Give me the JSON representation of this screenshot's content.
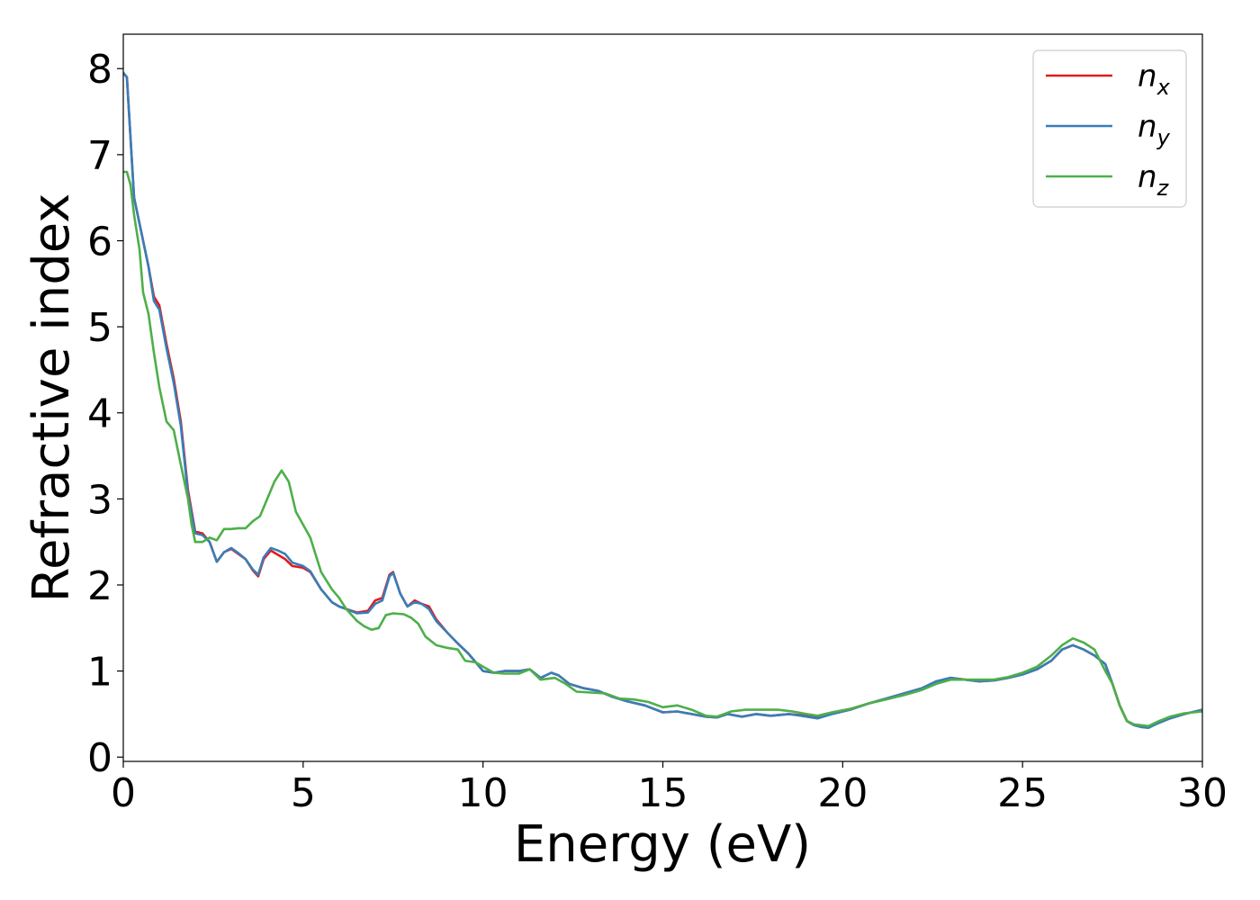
{
  "chart_data": {
    "type": "line",
    "title": "",
    "xlabel": "Energy (eV)",
    "ylabel": "Refractive index",
    "xlim": [
      0,
      30
    ],
    "ylim": [
      -0.05,
      8.4
    ],
    "xticks": [
      0,
      5,
      10,
      15,
      20,
      25,
      30
    ],
    "xtick_labels": [
      "0",
      "5",
      "10",
      "15",
      "20",
      "25",
      "30"
    ],
    "yticks": [
      0,
      1,
      2,
      3,
      4,
      5,
      6,
      7,
      8
    ],
    "ytick_labels": [
      "0",
      "1",
      "2",
      "3",
      "4",
      "5",
      "6",
      "7",
      "8"
    ],
    "grid": false,
    "legend_position": "top-right",
    "series": [
      {
        "name": "n_x",
        "label_main": "n",
        "label_sub": "x",
        "color": "#e41a1c",
        "points": [
          [
            0,
            7.95
          ],
          [
            0.1,
            7.9
          ],
          [
            0.2,
            7.2
          ],
          [
            0.3,
            6.5
          ],
          [
            0.5,
            6.1
          ],
          [
            0.7,
            5.7
          ],
          [
            0.85,
            5.35
          ],
          [
            1.0,
            5.25
          ],
          [
            1.2,
            4.8
          ],
          [
            1.4,
            4.4
          ],
          [
            1.6,
            3.9
          ],
          [
            1.8,
            3.1
          ],
          [
            2.0,
            2.62
          ],
          [
            2.2,
            2.6
          ],
          [
            2.4,
            2.5
          ],
          [
            2.6,
            2.27
          ],
          [
            2.8,
            2.38
          ],
          [
            3.0,
            2.42
          ],
          [
            3.2,
            2.36
          ],
          [
            3.4,
            2.3
          ],
          [
            3.6,
            2.17
          ],
          [
            3.75,
            2.1
          ],
          [
            3.9,
            2.3
          ],
          [
            4.1,
            2.4
          ],
          [
            4.3,
            2.35
          ],
          [
            4.5,
            2.3
          ],
          [
            4.7,
            2.22
          ],
          [
            5.0,
            2.2
          ],
          [
            5.2,
            2.15
          ],
          [
            5.5,
            1.95
          ],
          [
            5.8,
            1.8
          ],
          [
            6.0,
            1.75
          ],
          [
            6.2,
            1.72
          ],
          [
            6.5,
            1.68
          ],
          [
            6.8,
            1.7
          ],
          [
            7.0,
            1.82
          ],
          [
            7.2,
            1.85
          ],
          [
            7.4,
            2.12
          ],
          [
            7.5,
            2.15
          ],
          [
            7.7,
            1.9
          ],
          [
            7.9,
            1.75
          ],
          [
            8.1,
            1.82
          ],
          [
            8.3,
            1.78
          ],
          [
            8.5,
            1.75
          ],
          [
            8.7,
            1.6
          ],
          [
            9.0,
            1.45
          ],
          [
            9.3,
            1.32
          ],
          [
            9.6,
            1.2
          ],
          [
            9.8,
            1.1
          ],
          [
            10.0,
            1.0
          ],
          [
            10.3,
            0.98
          ],
          [
            10.6,
            1.0
          ],
          [
            11.0,
            1.0
          ],
          [
            11.3,
            1.02
          ],
          [
            11.6,
            0.92
          ],
          [
            11.9,
            0.98
          ],
          [
            12.1,
            0.95
          ],
          [
            12.4,
            0.85
          ],
          [
            12.8,
            0.8
          ],
          [
            13.2,
            0.77
          ],
          [
            13.6,
            0.7
          ],
          [
            14.0,
            0.65
          ],
          [
            14.5,
            0.6
          ],
          [
            15.0,
            0.52
          ],
          [
            15.4,
            0.53
          ],
          [
            15.8,
            0.5
          ],
          [
            16.2,
            0.47
          ],
          [
            16.5,
            0.46
          ],
          [
            16.8,
            0.5
          ],
          [
            17.2,
            0.47
          ],
          [
            17.6,
            0.5
          ],
          [
            18.0,
            0.48
          ],
          [
            18.5,
            0.5
          ],
          [
            19.0,
            0.48
          ],
          [
            19.3,
            0.46
          ],
          [
            19.7,
            0.5
          ],
          [
            20.2,
            0.55
          ],
          [
            20.7,
            0.62
          ],
          [
            21.2,
            0.68
          ],
          [
            21.7,
            0.74
          ],
          [
            22.2,
            0.8
          ],
          [
            22.6,
            0.88
          ],
          [
            23.0,
            0.92
          ],
          [
            23.4,
            0.9
          ],
          [
            23.8,
            0.88
          ],
          [
            24.2,
            0.89
          ],
          [
            24.6,
            0.92
          ],
          [
            25.0,
            0.96
          ],
          [
            25.4,
            1.02
          ],
          [
            25.8,
            1.12
          ],
          [
            26.1,
            1.25
          ],
          [
            26.4,
            1.3
          ],
          [
            26.7,
            1.25
          ],
          [
            27.0,
            1.18
          ],
          [
            27.3,
            1.08
          ],
          [
            27.5,
            0.85
          ],
          [
            27.7,
            0.6
          ],
          [
            27.9,
            0.42
          ],
          [
            28.1,
            0.37
          ],
          [
            28.3,
            0.35
          ],
          [
            28.5,
            0.35
          ],
          [
            28.8,
            0.4
          ],
          [
            29.1,
            0.45
          ],
          [
            29.5,
            0.5
          ],
          [
            30.0,
            0.55
          ]
        ]
      },
      {
        "name": "n_y",
        "label_main": "n",
        "label_sub": "y",
        "color": "#377eb8",
        "points": [
          [
            0,
            7.95
          ],
          [
            0.1,
            7.9
          ],
          [
            0.2,
            7.2
          ],
          [
            0.3,
            6.5
          ],
          [
            0.5,
            6.1
          ],
          [
            0.7,
            5.7
          ],
          [
            0.85,
            5.3
          ],
          [
            1.0,
            5.2
          ],
          [
            1.2,
            4.75
          ],
          [
            1.4,
            4.35
          ],
          [
            1.6,
            3.85
          ],
          [
            1.8,
            3.05
          ],
          [
            2.0,
            2.6
          ],
          [
            2.2,
            2.58
          ],
          [
            2.4,
            2.5
          ],
          [
            2.6,
            2.27
          ],
          [
            2.8,
            2.38
          ],
          [
            3.0,
            2.43
          ],
          [
            3.2,
            2.37
          ],
          [
            3.4,
            2.3
          ],
          [
            3.6,
            2.18
          ],
          [
            3.75,
            2.12
          ],
          [
            3.9,
            2.32
          ],
          [
            4.1,
            2.43
          ],
          [
            4.3,
            2.4
          ],
          [
            4.5,
            2.36
          ],
          [
            4.7,
            2.26
          ],
          [
            5.0,
            2.22
          ],
          [
            5.2,
            2.16
          ],
          [
            5.5,
            1.95
          ],
          [
            5.8,
            1.8
          ],
          [
            6.0,
            1.75
          ],
          [
            6.2,
            1.72
          ],
          [
            6.5,
            1.67
          ],
          [
            6.8,
            1.68
          ],
          [
            7.0,
            1.78
          ],
          [
            7.2,
            1.82
          ],
          [
            7.4,
            2.1
          ],
          [
            7.5,
            2.14
          ],
          [
            7.7,
            1.9
          ],
          [
            7.9,
            1.75
          ],
          [
            8.1,
            1.8
          ],
          [
            8.3,
            1.78
          ],
          [
            8.5,
            1.72
          ],
          [
            8.7,
            1.58
          ],
          [
            9.0,
            1.45
          ],
          [
            9.3,
            1.32
          ],
          [
            9.6,
            1.2
          ],
          [
            9.8,
            1.1
          ],
          [
            10.0,
            1.0
          ],
          [
            10.3,
            0.98
          ],
          [
            10.6,
            1.0
          ],
          [
            11.0,
            1.0
          ],
          [
            11.3,
            1.02
          ],
          [
            11.6,
            0.92
          ],
          [
            11.9,
            0.98
          ],
          [
            12.1,
            0.95
          ],
          [
            12.4,
            0.85
          ],
          [
            12.8,
            0.8
          ],
          [
            13.2,
            0.77
          ],
          [
            13.6,
            0.7
          ],
          [
            14.0,
            0.65
          ],
          [
            14.5,
            0.6
          ],
          [
            15.0,
            0.52
          ],
          [
            15.4,
            0.53
          ],
          [
            15.8,
            0.5
          ],
          [
            16.2,
            0.47
          ],
          [
            16.5,
            0.46
          ],
          [
            16.8,
            0.5
          ],
          [
            17.2,
            0.47
          ],
          [
            17.6,
            0.5
          ],
          [
            18.0,
            0.48
          ],
          [
            18.5,
            0.5
          ],
          [
            19.0,
            0.47
          ],
          [
            19.3,
            0.45
          ],
          [
            19.7,
            0.5
          ],
          [
            20.2,
            0.55
          ],
          [
            20.7,
            0.62
          ],
          [
            21.2,
            0.68
          ],
          [
            21.7,
            0.74
          ],
          [
            22.2,
            0.8
          ],
          [
            22.6,
            0.88
          ],
          [
            23.0,
            0.92
          ],
          [
            23.4,
            0.9
          ],
          [
            23.8,
            0.88
          ],
          [
            24.2,
            0.89
          ],
          [
            24.6,
            0.92
          ],
          [
            25.0,
            0.96
          ],
          [
            25.4,
            1.02
          ],
          [
            25.8,
            1.12
          ],
          [
            26.1,
            1.25
          ],
          [
            26.4,
            1.3
          ],
          [
            26.7,
            1.25
          ],
          [
            27.0,
            1.18
          ],
          [
            27.3,
            1.08
          ],
          [
            27.5,
            0.85
          ],
          [
            27.7,
            0.6
          ],
          [
            27.9,
            0.42
          ],
          [
            28.1,
            0.37
          ],
          [
            28.3,
            0.35
          ],
          [
            28.5,
            0.34
          ],
          [
            28.8,
            0.4
          ],
          [
            29.1,
            0.45
          ],
          [
            29.5,
            0.5
          ],
          [
            30.0,
            0.55
          ]
        ]
      },
      {
        "name": "n_z",
        "label_main": "n",
        "label_sub": "z",
        "color": "#4daf4a",
        "points": [
          [
            0,
            6.8
          ],
          [
            0.1,
            6.8
          ],
          [
            0.2,
            6.65
          ],
          [
            0.3,
            6.3
          ],
          [
            0.45,
            5.9
          ],
          [
            0.55,
            5.4
          ],
          [
            0.7,
            5.15
          ],
          [
            0.85,
            4.7
          ],
          [
            1.0,
            4.3
          ],
          [
            1.2,
            3.9
          ],
          [
            1.4,
            3.8
          ],
          [
            1.6,
            3.4
          ],
          [
            1.8,
            3.0
          ],
          [
            1.9,
            2.7
          ],
          [
            2.0,
            2.5
          ],
          [
            2.2,
            2.5
          ],
          [
            2.4,
            2.55
          ],
          [
            2.6,
            2.52
          ],
          [
            2.8,
            2.65
          ],
          [
            3.0,
            2.65
          ],
          [
            3.2,
            2.66
          ],
          [
            3.4,
            2.66
          ],
          [
            3.6,
            2.74
          ],
          [
            3.8,
            2.8
          ],
          [
            4.0,
            3.0
          ],
          [
            4.2,
            3.2
          ],
          [
            4.4,
            3.33
          ],
          [
            4.6,
            3.2
          ],
          [
            4.8,
            2.85
          ],
          [
            5.0,
            2.7
          ],
          [
            5.2,
            2.55
          ],
          [
            5.5,
            2.15
          ],
          [
            5.8,
            1.95
          ],
          [
            6.0,
            1.85
          ],
          [
            6.2,
            1.72
          ],
          [
            6.5,
            1.58
          ],
          [
            6.7,
            1.52
          ],
          [
            6.9,
            1.48
          ],
          [
            7.1,
            1.5
          ],
          [
            7.3,
            1.65
          ],
          [
            7.5,
            1.67
          ],
          [
            7.8,
            1.66
          ],
          [
            8.0,
            1.62
          ],
          [
            8.2,
            1.55
          ],
          [
            8.4,
            1.4
          ],
          [
            8.7,
            1.3
          ],
          [
            9.0,
            1.27
          ],
          [
            9.3,
            1.25
          ],
          [
            9.5,
            1.12
          ],
          [
            9.8,
            1.1
          ],
          [
            10.0,
            1.05
          ],
          [
            10.3,
            0.98
          ],
          [
            10.6,
            0.97
          ],
          [
            11.0,
            0.97
          ],
          [
            11.3,
            1.02
          ],
          [
            11.6,
            0.9
          ],
          [
            12.0,
            0.92
          ],
          [
            12.3,
            0.85
          ],
          [
            12.6,
            0.76
          ],
          [
            13.0,
            0.75
          ],
          [
            13.4,
            0.74
          ],
          [
            13.8,
            0.68
          ],
          [
            14.2,
            0.67
          ],
          [
            14.6,
            0.64
          ],
          [
            15.0,
            0.58
          ],
          [
            15.4,
            0.6
          ],
          [
            15.8,
            0.55
          ],
          [
            16.2,
            0.48
          ],
          [
            16.5,
            0.47
          ],
          [
            16.9,
            0.53
          ],
          [
            17.3,
            0.55
          ],
          [
            17.7,
            0.55
          ],
          [
            18.2,
            0.55
          ],
          [
            18.6,
            0.53
          ],
          [
            19.0,
            0.5
          ],
          [
            19.3,
            0.48
          ],
          [
            19.7,
            0.52
          ],
          [
            20.2,
            0.56
          ],
          [
            20.7,
            0.62
          ],
          [
            21.2,
            0.67
          ],
          [
            21.7,
            0.72
          ],
          [
            22.2,
            0.78
          ],
          [
            22.6,
            0.85
          ],
          [
            23.0,
            0.9
          ],
          [
            23.4,
            0.9
          ],
          [
            23.8,
            0.9
          ],
          [
            24.2,
            0.9
          ],
          [
            24.6,
            0.93
          ],
          [
            25.0,
            0.98
          ],
          [
            25.4,
            1.05
          ],
          [
            25.8,
            1.18
          ],
          [
            26.1,
            1.3
          ],
          [
            26.4,
            1.38
          ],
          [
            26.7,
            1.33
          ],
          [
            27.0,
            1.25
          ],
          [
            27.3,
            1.0
          ],
          [
            27.5,
            0.85
          ],
          [
            27.7,
            0.6
          ],
          [
            27.9,
            0.42
          ],
          [
            28.1,
            0.38
          ],
          [
            28.3,
            0.37
          ],
          [
            28.5,
            0.36
          ],
          [
            28.8,
            0.42
          ],
          [
            29.1,
            0.47
          ],
          [
            29.5,
            0.51
          ],
          [
            30.0,
            0.53
          ]
        ]
      }
    ]
  }
}
